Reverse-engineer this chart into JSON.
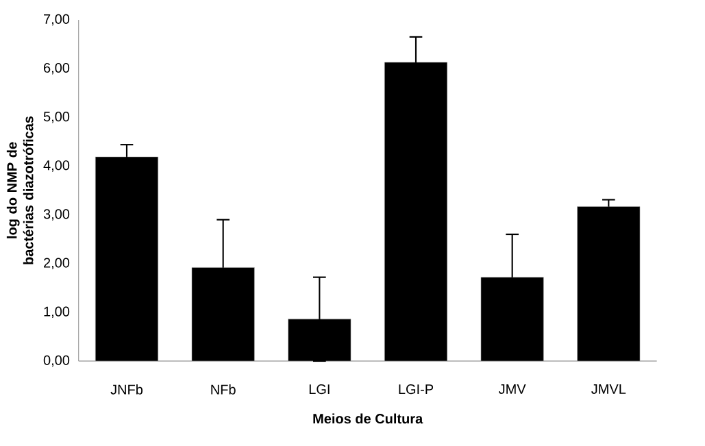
{
  "chart_data": {
    "type": "bar",
    "xlabel": "Meios de Cultura",
    "ylabel": "log do NMP de bactérias diazotróficas",
    "categories": [
      "JNFb",
      "NFb",
      "LGI",
      "LGI-P",
      "JMV",
      "JMVL"
    ],
    "values": [
      4.19,
      1.92,
      0.86,
      6.13,
      1.72,
      3.17
    ],
    "errors": [
      0.25,
      0.98,
      0.86,
      0.52,
      0.88,
      0.14
    ],
    "color": "#000000",
    "ylim": [
      0,
      7
    ],
    "yticks": [
      {
        "value": 0,
        "label": "0,00"
      },
      {
        "value": 1,
        "label": "1,00"
      },
      {
        "value": 2,
        "label": "2,00"
      },
      {
        "value": 3,
        "label": "3,00"
      },
      {
        "value": 4,
        "label": "4,00"
      },
      {
        "value": 5,
        "label": "5,00"
      },
      {
        "value": 6,
        "label": "6,00"
      },
      {
        "value": 7,
        "label": "7,00"
      }
    ]
  }
}
